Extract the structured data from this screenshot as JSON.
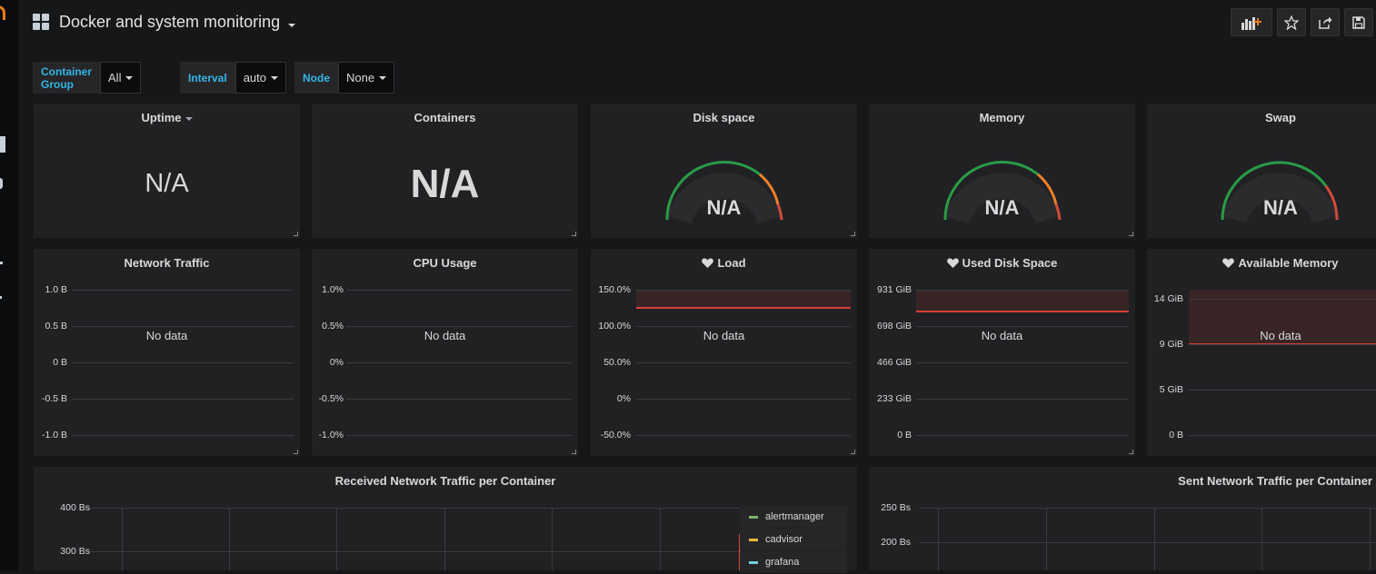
{
  "dashboard": {
    "title": "Docker and system monitoring"
  },
  "variables": [
    {
      "label": "Container Group",
      "value": "All"
    },
    {
      "label": "Interval",
      "value": "auto"
    },
    {
      "label": "Node",
      "value": "None"
    }
  ],
  "toolbar": {
    "add_panel_icon": "add-panel-icon",
    "star_icon": "star-icon",
    "share_icon": "share-icon",
    "save_icon": "save-icon"
  },
  "panels": {
    "uptime": {
      "title": "Uptime",
      "value": "N/A"
    },
    "containers": {
      "title": "Containers",
      "value": "N/A"
    },
    "disk_space": {
      "title": "Disk space",
      "value": "N/A"
    },
    "memory": {
      "title": "Memory",
      "value": "N/A"
    },
    "swap": {
      "title": "Swap",
      "value": "N/A"
    },
    "network_traffic": {
      "title": "Network Traffic",
      "empty": "No data",
      "ticks": [
        "1.0 B",
        "0.5 B",
        "0 B",
        "-0.5 B",
        "-1.0 B"
      ]
    },
    "cpu_usage": {
      "title": "CPU Usage",
      "empty": "No data",
      "ticks": [
        "1.0%",
        "0.5%",
        "0%",
        "-0.5%",
        "-1.0%"
      ]
    },
    "load": {
      "title": "Load",
      "empty": "No data",
      "ticks": [
        "150.0%",
        "100.0%",
        "50.0%",
        "0%",
        "-50.0%"
      ]
    },
    "used_disk_space": {
      "title": "Used Disk Space",
      "empty": "No data",
      "ticks": [
        "931 GiB",
        "698 GiB",
        "466 GiB",
        "233 GiB",
        "0 B"
      ]
    },
    "available_memory": {
      "title": "Available Memory",
      "empty": "No data",
      "ticks": [
        "14 GiB",
        "9 GiB",
        "5 GiB",
        "0 B"
      ]
    },
    "received_traffic": {
      "title": "Received Network Traffic per Container",
      "ticks": [
        "400 Bs",
        "300 Bs"
      ],
      "legend": [
        {
          "name": "alertmanager",
          "color": "#7eb26d"
        },
        {
          "name": "cadvisor",
          "color": "#eab839"
        },
        {
          "name": "grafana",
          "color": "#6ed0e0"
        }
      ]
    },
    "sent_traffic": {
      "title": "Sent Network Traffic per Container",
      "ticks": [
        "250 Bs",
        "200 Bs"
      ]
    }
  },
  "colors": {
    "gauge_green": "#299c46",
    "gauge_orange": "#ed8128",
    "gauge_red": "#d44a3a",
    "threshold_red": "#d63f37",
    "variable_label": "#33b5e5"
  }
}
